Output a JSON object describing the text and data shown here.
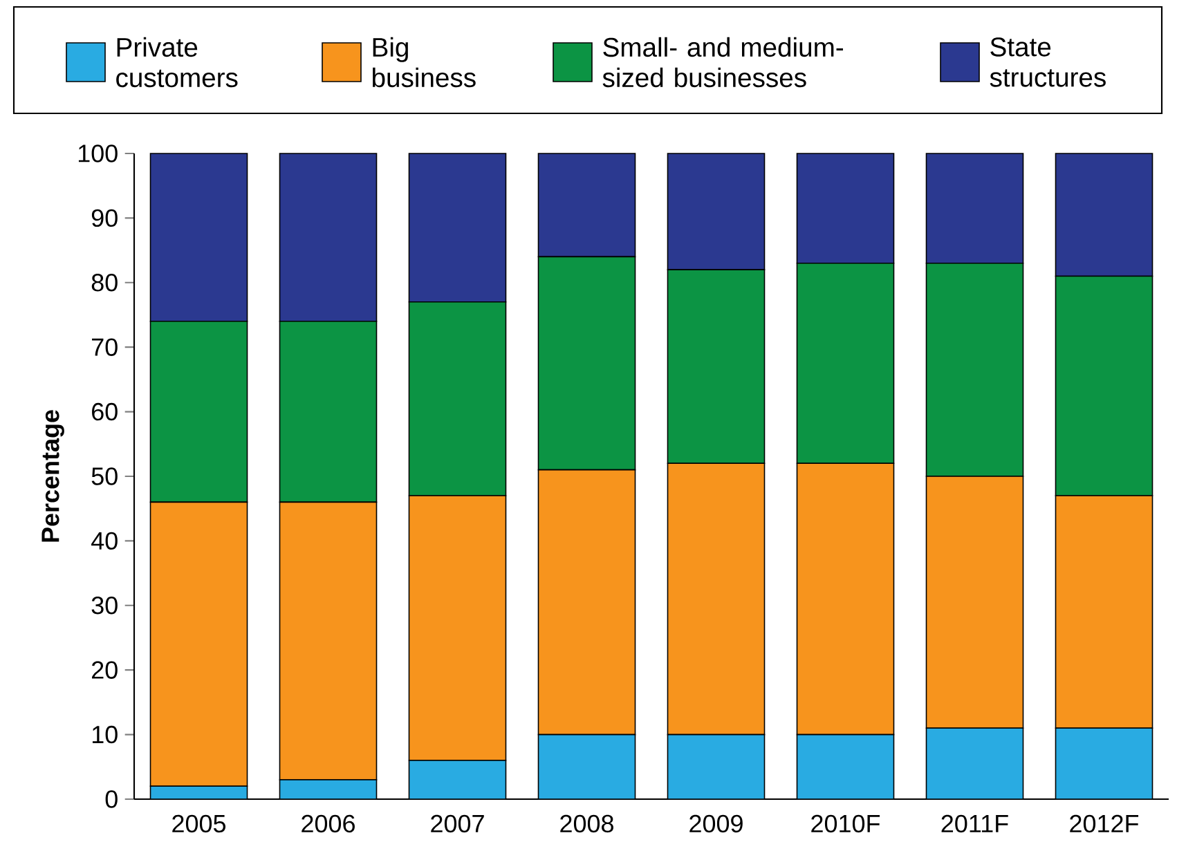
{
  "chart_data": {
    "type": "bar",
    "stacked": true,
    "ylabel": "Percentage",
    "categories": [
      "2005",
      "2006",
      "2007",
      "2008",
      "2009",
      "2010F",
      "2011F",
      "2012F"
    ],
    "series": [
      {
        "name": "Private customers",
        "color": "#29abe2",
        "values": [
          2,
          3,
          6,
          10,
          10,
          10,
          11,
          11
        ]
      },
      {
        "name": "Big business",
        "color": "#f7941d",
        "values": [
          44,
          43,
          41,
          41,
          42,
          42,
          39,
          36
        ]
      },
      {
        "name": "Small- and medium-sized businesses",
        "color": "#0c9444",
        "values": [
          28,
          28,
          30,
          33,
          30,
          31,
          33,
          34
        ]
      },
      {
        "name": "State structures",
        "color": "#2b3990",
        "values": [
          26,
          26,
          23,
          16,
          18,
          17,
          17,
          19
        ]
      }
    ],
    "ylim": [
      0,
      100
    ],
    "yticks": [
      0,
      10,
      20,
      30,
      40,
      50,
      60,
      70,
      80,
      90,
      100
    ],
    "grid": false,
    "legend": "top"
  }
}
